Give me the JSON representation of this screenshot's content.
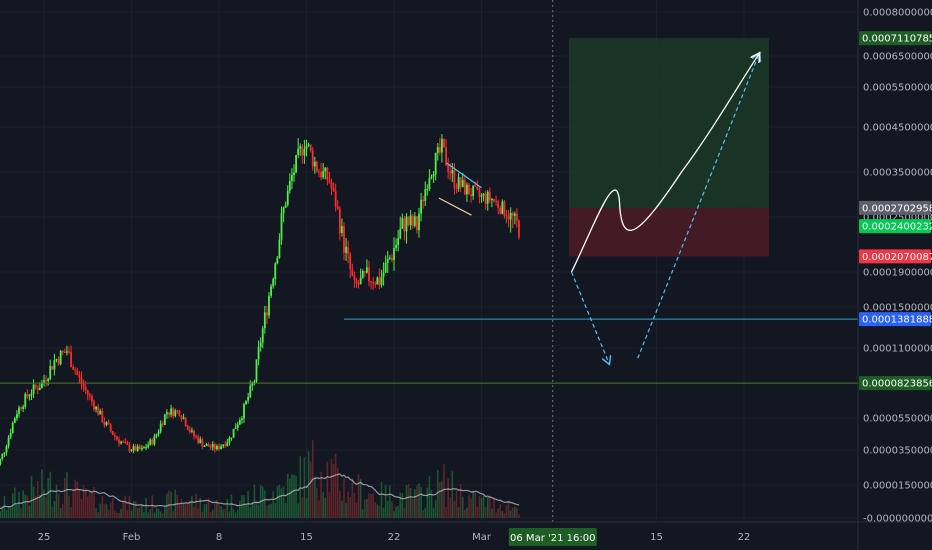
{
  "chart_data": {
    "type": "candlestick",
    "title": "",
    "xlabel": "",
    "ylabel": "",
    "ylim": [
      0,
      0.0008
    ],
    "y_ticks": [
      "0.0008000000",
      "0.0006500000",
      "0.0005500000",
      "0.0004500000",
      "0.0003500000",
      "0.0002500000",
      "0.0001900000",
      "0.0001500000",
      "0.0001100000",
      "0.0000550000",
      "0.0000350000",
      "0.0000150000",
      "-0.0000000000"
    ],
    "x_ticks": [
      {
        "label": "25",
        "day": 25
      },
      {
        "label": "Feb",
        "day": 32
      },
      {
        "label": "8",
        "day": 39
      },
      {
        "label": "15",
        "day": 46
      },
      {
        "label": "22",
        "day": 53
      },
      {
        "label": "Mar",
        "day": 60
      },
      {
        "label": "15",
        "day": 74
      },
      {
        "label": "22",
        "day": 81
      }
    ],
    "crosshair_x_label": "06 Mar '21  16:00",
    "crosshair_day": 65.7,
    "price_tags": [
      {
        "value": 0.0007110785,
        "label": "0.0007110785",
        "color": "#1e5e25"
      },
      {
        "value": 0.0002702958,
        "label": "0.0002702958",
        "color": "#5d606b"
      },
      {
        "value": 0.0002400232,
        "label": "0.0002400232",
        "color": "#00c853"
      },
      {
        "value": 0.0002070087,
        "label": "0.0002070087",
        "color": "#f23645"
      },
      {
        "value": 0.0001381888,
        "label": "0.0001381888",
        "color": "#2962ff"
      },
      {
        "value": 8.23856e-05,
        "label": "0.0000823856",
        "color": "#1e5e25"
      }
    ],
    "horizontal_lines": [
      {
        "value": 8.23856e-05,
        "color": "#4c7a2a"
      },
      {
        "value": 0.0001381888,
        "color": "#26a6c9",
        "from_day": 49
      }
    ],
    "long_position": {
      "from_day": 67,
      "to_day": 83,
      "entry": 0.0002702958,
      "stop": 0.0002070087,
      "target": 0.0007110785
    },
    "price_path": [
      [
        21,
        1.8e-05
      ],
      [
        22,
        3.5e-05
      ],
      [
        23,
        6e-05
      ],
      [
        24,
        7.5e-05
      ],
      [
        25,
        8.2e-05
      ],
      [
        26,
        0.0001
      ],
      [
        27,
        0.000108
      ],
      [
        28,
        8.5e-05
      ],
      [
        29,
        6.8e-05
      ],
      [
        30,
        5.2e-05
      ],
      [
        31,
        4.2e-05
      ],
      [
        32,
        3.6e-05
      ],
      [
        33,
        3.5e-05
      ],
      [
        34,
        4.2e-05
      ],
      [
        35,
        6e-05
      ],
      [
        36,
        6e-05
      ],
      [
        37,
        4.5e-05
      ],
      [
        38,
        3.8e-05
      ],
      [
        39,
        3.6e-05
      ],
      [
        40,
        4.2e-05
      ],
      [
        41,
        5.8e-05
      ],
      [
        42,
        8.5e-05
      ],
      [
        43,
        0.00015
      ],
      [
        44,
        0.00023
      ],
      [
        45,
        0.00034
      ],
      [
        46,
        0.00042
      ],
      [
        47,
        0.00036
      ],
      [
        48,
        0.00033
      ],
      [
        49,
        0.00023
      ],
      [
        50,
        0.000172
      ],
      [
        51,
        0.000185
      ],
      [
        52,
        0.00018
      ],
      [
        53,
        0.00021
      ],
      [
        54,
        0.000245
      ],
      [
        55,
        0.00024
      ],
      [
        56,
        0.00035
      ],
      [
        57,
        0.0004
      ],
      [
        58,
        0.00033
      ],
      [
        59,
        0.00031
      ],
      [
        60,
        0.000295
      ],
      [
        61,
        0.00029
      ],
      [
        62,
        0.000265
      ],
      [
        63,
        0.00024
      ]
    ],
    "volume_path": [
      [
        21,
        0.12
      ],
      [
        23,
        0.35
      ],
      [
        26,
        0.55
      ],
      [
        28,
        0.35
      ],
      [
        30,
        0.25
      ],
      [
        33,
        0.2
      ],
      [
        36,
        0.3
      ],
      [
        39,
        0.2
      ],
      [
        42,
        0.35
      ],
      [
        45,
        0.55
      ],
      [
        47,
        0.9
      ],
      [
        49,
        0.5
      ],
      [
        52,
        0.35
      ],
      [
        55,
        0.35
      ],
      [
        57,
        0.55
      ],
      [
        59,
        0.3
      ],
      [
        62,
        0.2
      ],
      [
        63,
        0.15
      ]
    ],
    "projection_path": [
      {
        "from": [
          67.2,
          0.00019
        ],
        "to": [
          70.2,
          9.8e-05
        ],
        "style": "dashed"
      },
      {
        "from": [
          72.5,
          0.000102
        ],
        "to": [
          82.2,
          0.000657
        ],
        "style": "dashed"
      },
      {
        "from": [
          67.2,
          0.00019
        ],
        "to": [
          82.2,
          0.000657
        ],
        "style": "solid"
      }
    ],
    "colors": {
      "up": "#4ff047",
      "down": "#ff2b2b",
      "background": "#131722",
      "grid": "#2a2e39",
      "volume_ma": "#b8b8c0",
      "axis_text": "#b2b5be"
    }
  }
}
